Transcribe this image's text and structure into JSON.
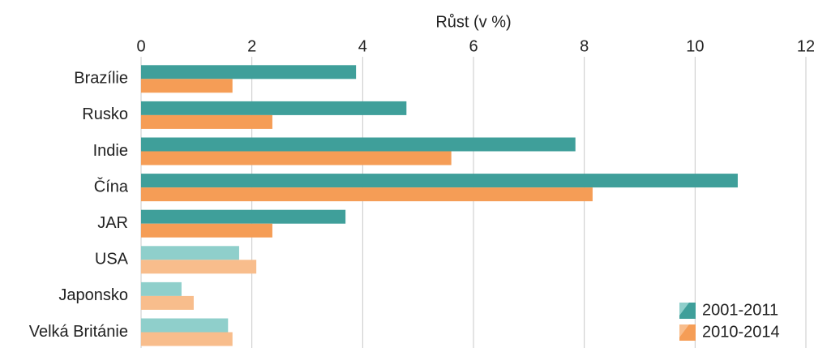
{
  "chart_data": {
    "type": "hbar",
    "xlabel": "Růst (v %)",
    "categories": [
      "Brazílie",
      "Rusko",
      "Indie",
      "Čína",
      "JAR",
      "USA",
      "Japonsko",
      "Velká Británie"
    ],
    "series": [
      {
        "name": "2001-2011",
        "color": "#3f9f9a",
        "colors": [
          "#3f9f9a",
          "#3f9f9a",
          "#3f9f9a",
          "#3f9f9a",
          "#3f9f9a",
          "#8fcfcb",
          "#8fcfcb",
          "#8fcfcb"
        ],
        "values": [
          3.88,
          4.79,
          7.84,
          10.77,
          3.69,
          1.77,
          0.73,
          1.57
        ]
      },
      {
        "name": "2010-2014",
        "color": "#f59d56",
        "colors": [
          "#f59d56",
          "#f59d56",
          "#f59d56",
          "#f59d56",
          "#f59d56",
          "#f8bd8c",
          "#f8bd8c",
          "#f8bd8c"
        ],
        "values": [
          1.65,
          2.37,
          5.6,
          8.15,
          2.37,
          2.08,
          0.95,
          1.65
        ]
      }
    ],
    "xlim": [
      0,
      12
    ],
    "xticks": [
      0,
      2,
      4,
      6,
      8,
      10,
      12
    ],
    "grid": true,
    "legend": "lower right"
  }
}
